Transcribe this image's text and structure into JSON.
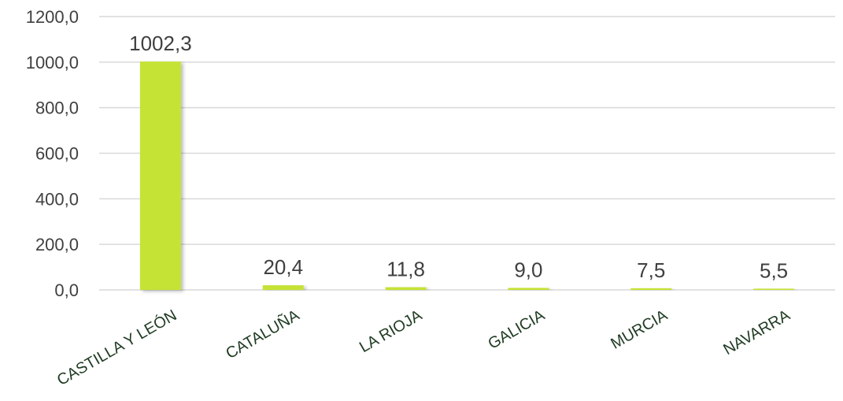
{
  "chart_data": {
    "type": "bar",
    "categories": [
      "CASTILLA Y LEÓN",
      "CATALUÑA",
      "LA RIOJA",
      "GALICIA",
      "MURCIA",
      "NAVARRA"
    ],
    "values": [
      1002.3,
      20.4,
      11.8,
      9.0,
      7.5,
      5.5
    ],
    "value_labels": [
      "1002,3",
      "20,4",
      "11,8",
      "9,0",
      "7,5",
      "5,5"
    ],
    "yticks": [
      0,
      200,
      400,
      600,
      800,
      1000,
      1200
    ],
    "ytick_labels": [
      "0,0",
      "200,0",
      "400,0",
      "600,0",
      "800,0",
      "1000,0",
      "1200,0"
    ],
    "ylim": [
      0,
      1200
    ],
    "title": "",
    "xlabel": "",
    "ylabel": "",
    "grid": "horizontal",
    "legend": "none",
    "colors": {
      "bar": "#c5e336",
      "bar_shadow": "#9fb52a",
      "grid": "#d9d9d9",
      "tick_text": "#404040",
      "category_text": "#1f3b22"
    }
  }
}
